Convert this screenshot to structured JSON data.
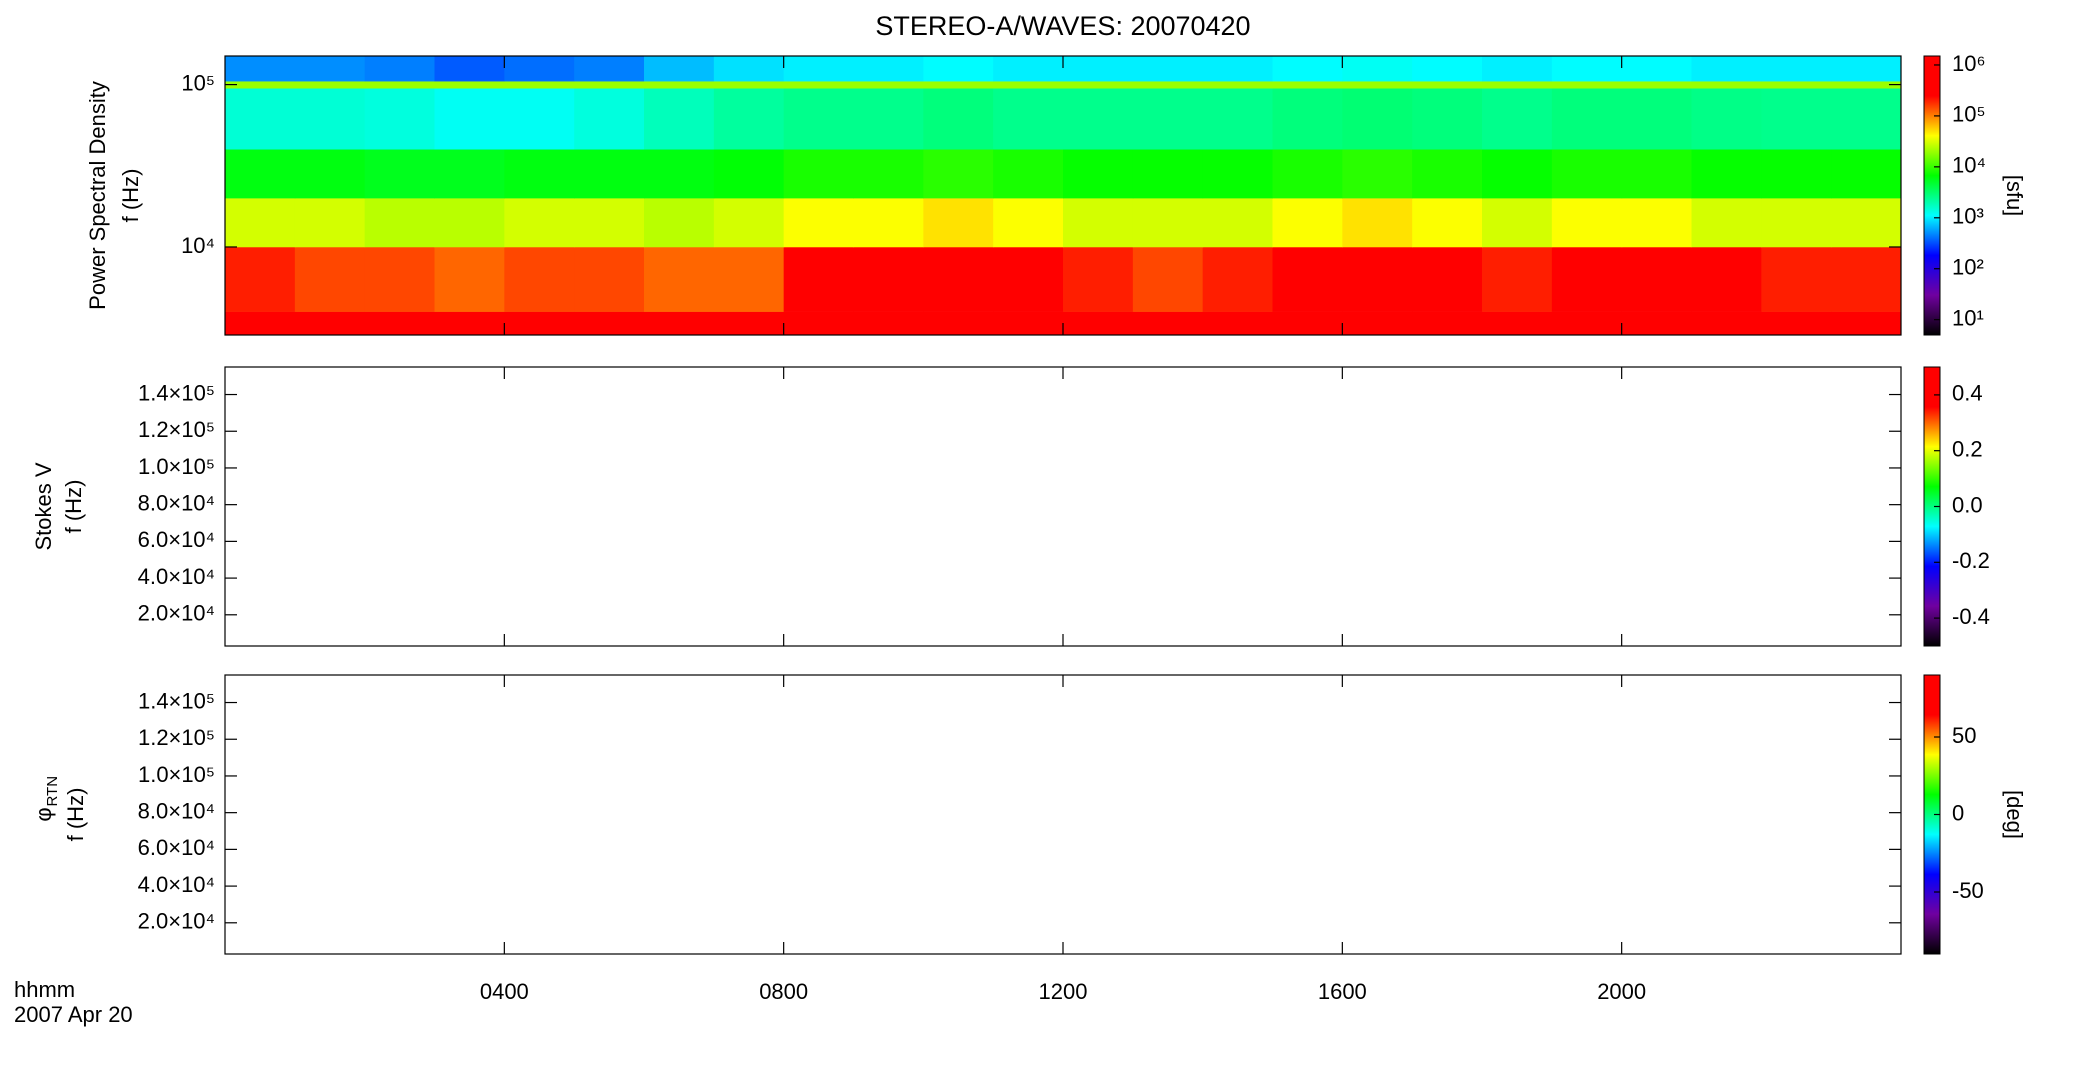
{
  "chart_data": [
    {
      "type": "heatmap",
      "title": "STEREO-A/WAVES: 20070420",
      "ylabel": [
        "Power Spectral Density",
        "f (Hz)"
      ],
      "ylog": true,
      "ylim": [
        2870,
        150000
      ],
      "yticks": [
        {
          "value": 10000,
          "label": "10⁴"
        },
        {
          "value": 100000,
          "label": "10⁵"
        }
      ],
      "x_edges": [
        0,
        1,
        2,
        3,
        4,
        5,
        6,
        7,
        8,
        9,
        10,
        11,
        12,
        13,
        14,
        15,
        16,
        17,
        18,
        19,
        20,
        21,
        22,
        23,
        24
      ],
      "y_edges": [
        2870,
        4000,
        10000,
        20000,
        40000,
        95000,
        105000,
        150000
      ],
      "values": [
        [
          700000,
          800000,
          700000,
          600000,
          800000,
          800000,
          700000,
          600000,
          900000,
          900000,
          900000,
          900000,
          700000,
          700000,
          700000,
          900000,
          1000000,
          900000,
          800000,
          900000,
          800000,
          800000,
          700000,
          800000
        ],
        [
          200000,
          150000,
          150000,
          120000,
          150000,
          150000,
          120000,
          120000,
          300000,
          250000,
          400000,
          300000,
          200000,
          150000,
          200000,
          300000,
          400000,
          300000,
          200000,
          300000,
          250000,
          250000,
          200000,
          200000
        ],
        [
          30000,
          30000,
          25000,
          25000,
          30000,
          30000,
          25000,
          30000,
          40000,
          40000,
          50000,
          40000,
          30000,
          30000,
          30000,
          40000,
          50000,
          40000,
          30000,
          40000,
          40000,
          30000,
          30000,
          30000
        ],
        [
          6000,
          6000,
          5500,
          5500,
          6000,
          6000,
          6000,
          6500,
          8000,
          8000,
          9000,
          8000,
          7000,
          7000,
          7000,
          8000,
          9000,
          8000,
          7000,
          8000,
          8000,
          7000,
          7000,
          7000
        ],
        [
          1500,
          1500,
          1400,
          1200,
          1200,
          1400,
          1800,
          2200,
          2500,
          2500,
          2800,
          2500,
          2500,
          2500,
          2500,
          2800,
          3000,
          2800,
          2500,
          2800,
          2800,
          2600,
          2500,
          2500
        ],
        [
          20000,
          20000,
          20000,
          20000,
          20000,
          20000,
          20000,
          20000,
          20000,
          20000,
          20000,
          20000,
          20000,
          20000,
          20000,
          20000,
          20000,
          20000,
          20000,
          20000,
          20000,
          20000,
          20000,
          20000
        ],
        [
          500,
          500,
          450,
          350,
          400,
          450,
          700,
          900,
          1000,
          1000,
          1100,
          1000,
          1000,
          1000,
          1000,
          1100,
          1200,
          1100,
          1000,
          1100,
          1100,
          1000,
          1000,
          1000
        ]
      ],
      "colorbar": {
        "label": "[sfu]",
        "log": true,
        "zlim": [
          5,
          1500000
        ],
        "ticks": [
          {
            "value": 10,
            "label": "10¹"
          },
          {
            "value": 100,
            "label": "10²"
          },
          {
            "value": 1000,
            "label": "10³"
          },
          {
            "value": 10000,
            "label": "10⁴"
          },
          {
            "value": 100000,
            "label": "10⁵"
          },
          {
            "value": 1000000,
            "label": "10⁶"
          }
        ],
        "colors": [
          "#000000",
          "#7000a0",
          "#0000ff",
          "#00ffff",
          "#00ff00",
          "#ffff00",
          "#ff0000",
          "#ff0000"
        ]
      }
    },
    {
      "type": "heatmap",
      "ylabel": [
        "Stokes V",
        "f (Hz)"
      ],
      "ylog": false,
      "ylim": [
        3000,
        155000
      ],
      "yticks": [
        {
          "value": 20000,
          "label": "2.0×10⁴"
        },
        {
          "value": 40000,
          "label": "4.0×10⁴"
        },
        {
          "value": 60000,
          "label": "6.0×10⁴"
        },
        {
          "value": 80000,
          "label": "8.0×10⁴"
        },
        {
          "value": 100000,
          "label": "1.0×10⁵"
        },
        {
          "value": 120000,
          "label": "1.2×10⁵"
        },
        {
          "value": 140000,
          "label": "1.4×10⁵"
        }
      ],
      "colorbar": {
        "log": false,
        "zlim": [
          -0.5,
          0.5
        ],
        "ticks": [
          -0.4,
          -0.2,
          {
            "value": 0,
            "label": "0.0"
          },
          0.2,
          0.4
        ],
        "colors": [
          "#000000",
          "#7000a0",
          "#0000ff",
          "#00ffff",
          "#00ff00",
          "#ffff00",
          "#ff0000",
          "#ff0000"
        ]
      }
    },
    {
      "type": "heatmap",
      "ylabel": [
        "φ",
        "f (Hz)"
      ],
      "ylabel_sub": "RTN",
      "ylog": false,
      "ylim": [
        3000,
        155000
      ],
      "yticks": [
        {
          "value": 20000,
          "label": "2.0×10⁴"
        },
        {
          "value": 40000,
          "label": "4.0×10⁴"
        },
        {
          "value": 60000,
          "label": "6.0×10⁴"
        },
        {
          "value": 80000,
          "label": "8.0×10⁴"
        },
        {
          "value": 100000,
          "label": "1.0×10⁵"
        },
        {
          "value": 120000,
          "label": "1.2×10⁵"
        },
        {
          "value": 140000,
          "label": "1.4×10⁵"
        }
      ],
      "colorbar": {
        "label": "[deg]",
        "log": false,
        "zlim": [
          -90,
          90
        ],
        "ticks": [
          -50,
          0,
          50
        ],
        "colors": [
          "#000000",
          "#7000a0",
          "#0000ff",
          "#00ffff",
          "#00ff00",
          "#ffff00",
          "#ff0000",
          "#ff0000"
        ]
      },
      "xlim": [
        0,
        24
      ],
      "xticks": [
        {
          "value": 4,
          "label": "0400"
        },
        {
          "value": 8,
          "label": "0800"
        },
        {
          "value": 12,
          "label": "1200"
        },
        {
          "value": 16,
          "label": "1600"
        },
        {
          "value": 20,
          "label": "2000"
        }
      ],
      "xlabel": "hhmm",
      "date": "2007 Apr 20"
    }
  ]
}
